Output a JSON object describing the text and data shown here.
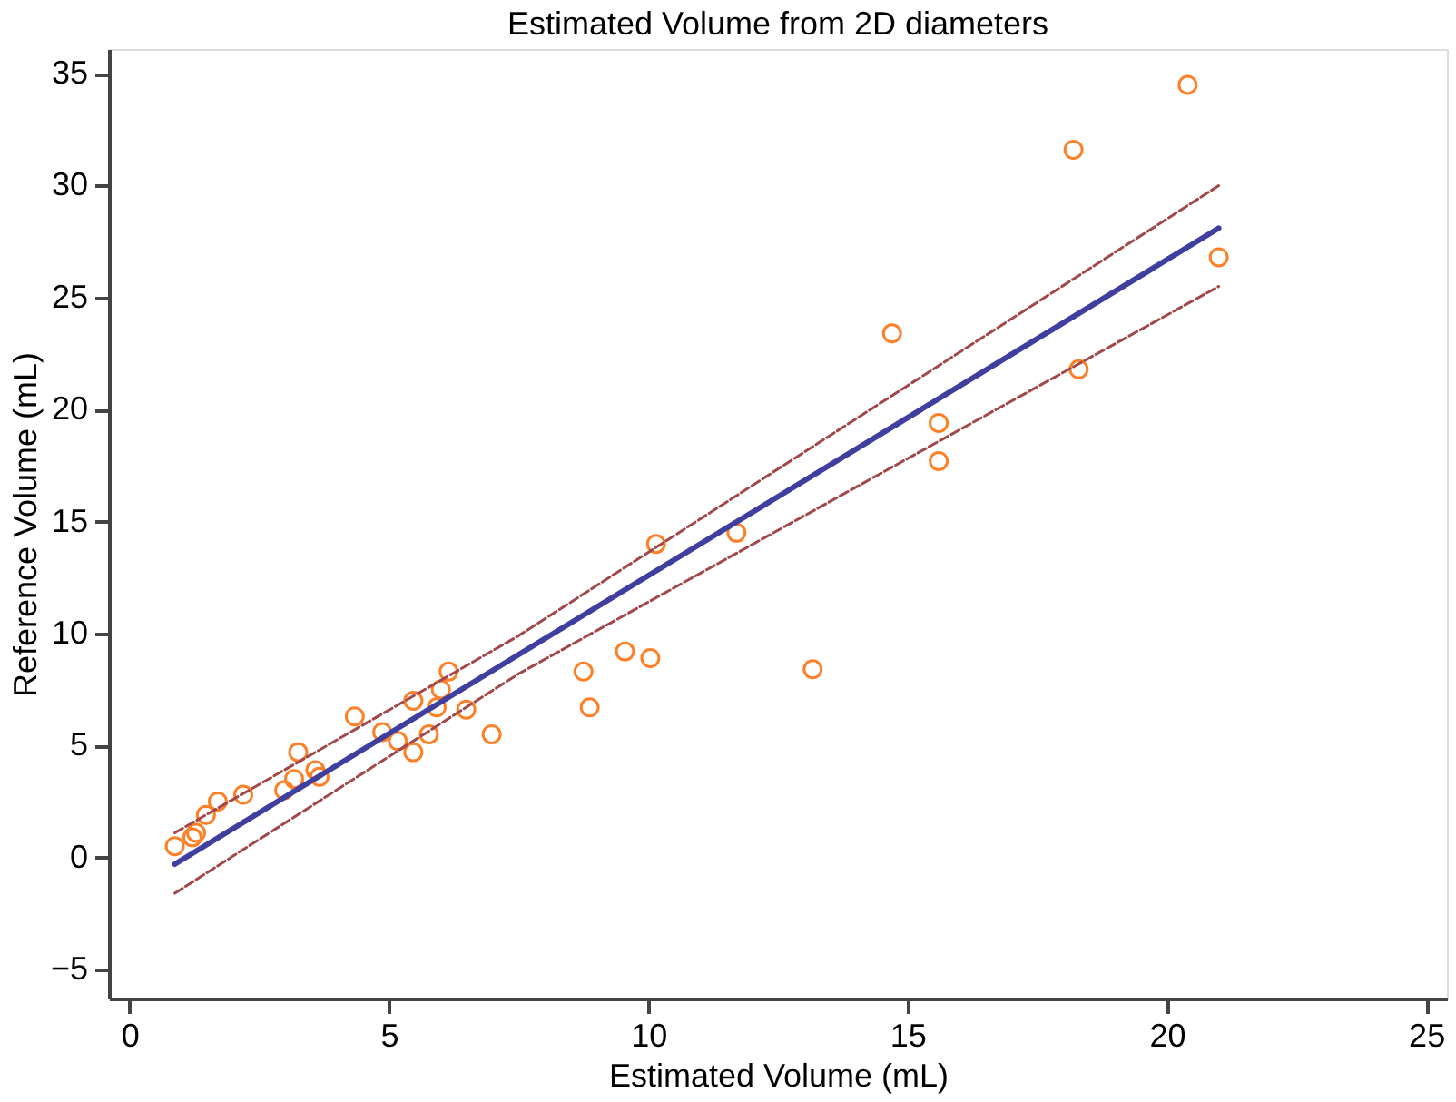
{
  "chart_data": {
    "type": "scatter",
    "title": "Estimated Volume from 2D diameters",
    "xlabel": "Estimated Volume (mL)",
    "ylabel": "Reference Volume (mL)",
    "xlim": [
      -0.4,
      25.4
    ],
    "ylim": [
      -6.3,
      36.1
    ],
    "xticks": [
      0,
      5,
      10,
      15,
      20,
      25
    ],
    "yticks": [
      -5,
      0,
      5,
      10,
      15,
      20,
      25,
      30,
      35
    ],
    "grid": false,
    "series": [
      {
        "marker": "circle",
        "color": "#ff7f27",
        "x": [
          0.87,
          1.21,
          1.28,
          1.47,
          1.7,
          2.19,
          2.98,
          3.17,
          3.25,
          3.58,
          3.66,
          4.34,
          4.87,
          5.17,
          5.47,
          5.47,
          5.77,
          5.92,
          6.0,
          6.15,
          6.49,
          6.98,
          8.75,
          8.87,
          9.55,
          10.04,
          10.15,
          11.7,
          13.17,
          14.7,
          15.6,
          15.6,
          18.2,
          18.3,
          20.4,
          21.0
        ],
        "values": [
          0.5,
          0.9,
          1.1,
          1.9,
          2.5,
          2.8,
          3.0,
          3.5,
          4.7,
          3.9,
          3.6,
          6.3,
          5.6,
          5.2,
          4.7,
          7.0,
          5.5,
          6.7,
          7.5,
          8.3,
          6.6,
          5.5,
          8.3,
          6.7,
          9.2,
          8.9,
          14.0,
          14.5,
          8.4,
          23.4,
          19.4,
          17.7,
          31.6,
          21.8,
          34.5,
          26.8
        ]
      },
      {
        "type": "line",
        "line_style": "solid",
        "color": "#3f3fa0",
        "x": [
          0.87,
          21.0
        ],
        "values": [
          -0.3,
          28.1
        ]
      },
      {
        "type": "line",
        "line_style": "dashed",
        "color": "#a0484a",
        "x": [
          0.87,
          7.5,
          21.0
        ],
        "values": [
          1.1,
          9.9,
          30.0
        ]
      },
      {
        "type": "line",
        "line_style": "dashed",
        "color": "#a0484a",
        "x": [
          0.87,
          7.5,
          21.0
        ],
        "values": [
          -1.6,
          8.2,
          25.5
        ]
      }
    ]
  }
}
